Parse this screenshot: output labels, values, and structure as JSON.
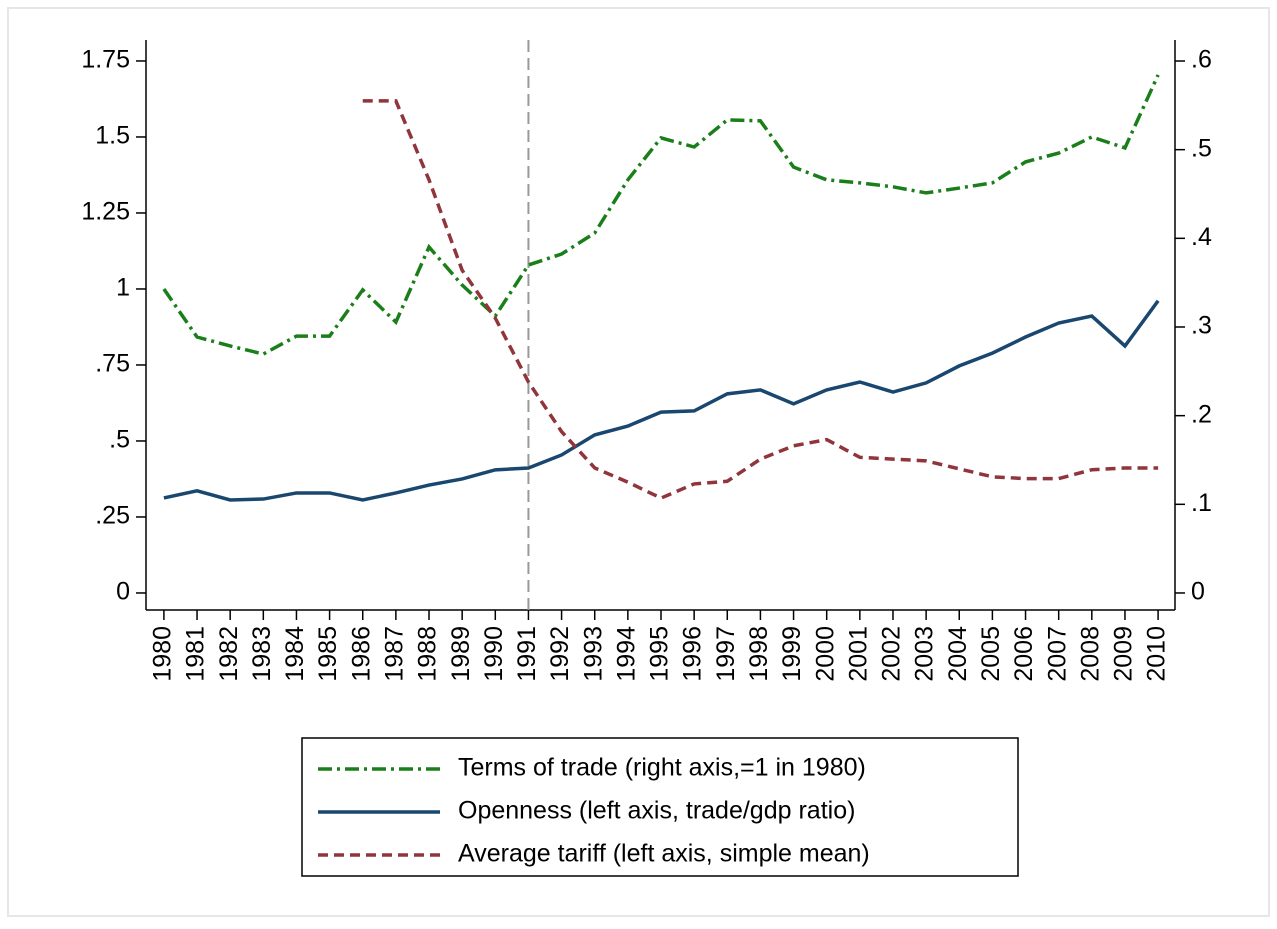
{
  "chart_data": {
    "type": "line",
    "x": [
      1980,
      1981,
      1982,
      1983,
      1984,
      1985,
      1986,
      1987,
      1988,
      1989,
      1990,
      1991,
      1992,
      1993,
      1994,
      1995,
      1996,
      1997,
      1998,
      1999,
      2000,
      2001,
      2002,
      2003,
      2004,
      2005,
      2006,
      2007,
      2008,
      2009,
      2010
    ],
    "xlim": [
      1979.46,
      2010.51
    ],
    "xticks": [
      1980,
      1981,
      1982,
      1983,
      1984,
      1985,
      1986,
      1987,
      1988,
      1989,
      1990,
      1991,
      1992,
      1993,
      1994,
      1995,
      1996,
      1997,
      1998,
      1999,
      2000,
      2001,
      2002,
      2003,
      2004,
      2005,
      2006,
      2007,
      2008,
      2009,
      2010
    ],
    "ylim": [
      -0.056,
      1.819
    ],
    "yticks": [
      0,
      {
        "value": 0.25,
        "label": ".25"
      },
      {
        "value": 0.5,
        "label": ".5"
      },
      {
        "value": 0.75,
        "label": ".75"
      },
      1,
      1.25,
      1.5,
      1.75
    ],
    "y2lim": [
      -0.0192,
      0.6237
    ],
    "y2ticks": [
      0,
      {
        "value": 0.1,
        "label": ".1"
      },
      {
        "value": 0.2,
        "label": ".2"
      },
      {
        "value": 0.3,
        "label": ".3"
      },
      {
        "value": 0.4,
        "label": ".4"
      },
      {
        "value": 0.5,
        "label": ".5"
      },
      {
        "value": 0.6,
        "label": ".6"
      }
    ],
    "vline": 1991,
    "series": [
      {
        "name": "Terms of trade (right axis,=1 in 1980)",
        "color": "#1a7f1a",
        "dash": "14 5 3 5",
        "axis": "y",
        "values": [
          1.0,
          0.842,
          0.8125,
          0.786,
          0.845,
          0.845,
          0.997,
          0.891,
          1.138,
          1.013,
          0.911,
          1.079,
          1.115,
          1.184,
          1.359,
          1.497,
          1.467,
          1.556,
          1.553,
          1.401,
          1.359,
          1.349,
          1.336,
          1.316,
          1.332,
          1.349,
          1.418,
          1.447,
          1.5,
          1.464,
          1.704
        ]
      },
      {
        "name": "Openness (left axis, trade/gdp ratio)",
        "color": "#1a476f",
        "dash": "none",
        "axis": "y",
        "values": [
          0.3125,
          0.336,
          0.306,
          0.309,
          0.329,
          0.329,
          0.306,
          0.329,
          0.355,
          0.375,
          0.405,
          0.411,
          0.454,
          0.52,
          0.549,
          0.595,
          0.599,
          0.655,
          0.668,
          0.622,
          0.668,
          0.694,
          0.661,
          0.691,
          0.747,
          0.789,
          0.842,
          0.888,
          0.911,
          0.8125,
          0.961
        ]
      },
      {
        "name": "Average tariff (left axis, simple mean)",
        "color": "#90353b",
        "dash": "10 6",
        "axis": "y2",
        "values": [
          null,
          null,
          null,
          null,
          null,
          null,
          0.555,
          0.555,
          0.466,
          0.364,
          0.31,
          0.238,
          0.182,
          0.141,
          0.125,
          0.107,
          0.123,
          0.126,
          0.151,
          0.166,
          0.173,
          0.153,
          0.151,
          0.149,
          0.14,
          0.131,
          0.129,
          0.129,
          0.139,
          0.141,
          0.141
        ]
      }
    ]
  }
}
